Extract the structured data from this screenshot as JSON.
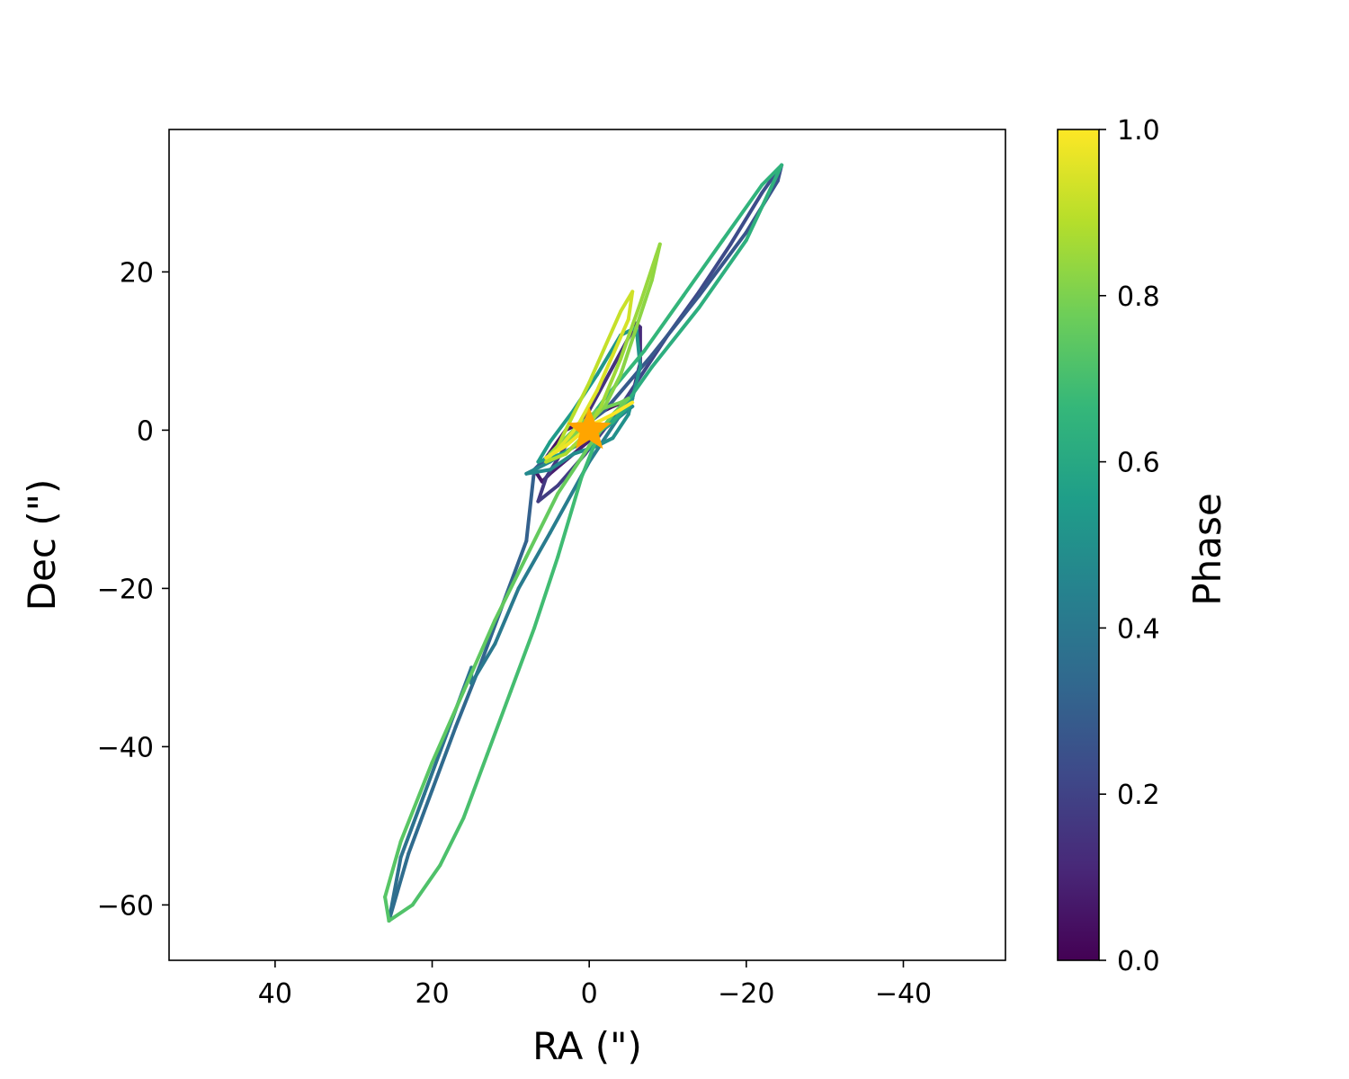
{
  "chart_data": {
    "type": "line",
    "title": "",
    "xlabel": "RA (\")",
    "ylabel": "Dec (\")",
    "colorbar_label": "Phase",
    "xlim": [
      53.5,
      -53
    ],
    "ylim": [
      -67,
      38
    ],
    "xaxis_inverted": true,
    "grid": false,
    "x_ticks": [
      40,
      20,
      0,
      -20,
      -40
    ],
    "x_tick_labels": [
      "40",
      "20",
      "0",
      "−20",
      "−40"
    ],
    "y_ticks": [
      20,
      0,
      -20,
      -40,
      -60
    ],
    "y_tick_labels": [
      "20",
      "0",
      "−20",
      "−40",
      "−60"
    ],
    "colorbar_ticks": [
      0.0,
      0.2,
      0.4,
      0.6,
      0.8,
      1.0
    ],
    "colorbar_tick_labels": [
      "0.0",
      "0.2",
      "0.4",
      "0.6",
      "0.8",
      "1.0"
    ],
    "colormap": "viridis",
    "colormap_stops": [
      "#440154",
      "#482878",
      "#3e4989",
      "#31688e",
      "#26828e",
      "#1f9e89",
      "#35b779",
      "#6ece58",
      "#b5de2b",
      "#fde725"
    ],
    "host_star": {
      "x": 0,
      "y": 0,
      "color": "#ffa500",
      "marker": "star"
    },
    "series": [
      {
        "phase_start": 0.02,
        "phase_end": 0.36,
        "points": [
          [
            -5.5,
            4.0
          ],
          [
            -3,
            3.0
          ],
          [
            0,
            1.5
          ],
          [
            3,
            0.0
          ],
          [
            5.5,
            -3.5
          ],
          [
            7,
            -5.0
          ],
          [
            6,
            -6.5
          ],
          [
            5,
            -5.5
          ],
          [
            2,
            -3.0
          ],
          [
            -1,
            -0.5
          ],
          [
            -3,
            1.0
          ],
          [
            -5.5,
            4.5
          ],
          [
            -6.5,
            8.5
          ],
          [
            -6.5,
            13.0
          ],
          [
            -6,
            13.5
          ],
          [
            -3,
            8.0
          ],
          [
            0,
            2.5
          ],
          [
            3,
            -2.0
          ],
          [
            5.5,
            -6.0
          ],
          [
            6.5,
            -9.0
          ],
          [
            4,
            -7.0
          ],
          [
            0.5,
            -3.0
          ],
          [
            -3,
            1.5
          ],
          [
            -6,
            6.0
          ],
          [
            -10,
            12.0
          ],
          [
            -14,
            17.5
          ],
          [
            -18,
            23.5
          ],
          [
            -22,
            30.0
          ],
          [
            -24.5,
            33.5
          ],
          [
            -24,
            31.5
          ],
          [
            -20,
            25.0
          ],
          [
            -14,
            17.0
          ],
          [
            -8,
            9.5
          ],
          [
            -2,
            2.5
          ],
          [
            4,
            -2.0
          ],
          [
            7,
            -5.0
          ],
          [
            8,
            -14.0
          ],
          [
            11,
            -22.0
          ],
          [
            14,
            -30.0
          ],
          [
            17,
            -37.5
          ],
          [
            20,
            -45.5
          ],
          [
            23,
            -53.5
          ],
          [
            25.5,
            -62.0
          ]
        ]
      },
      {
        "phase_start": 0.36,
        "phase_end": 0.62,
        "points": [
          [
            25.5,
            -62.0
          ],
          [
            24,
            -54.0
          ],
          [
            21,
            -46.0
          ],
          [
            18,
            -38.0
          ],
          [
            15,
            -30.0
          ],
          [
            15,
            -32.0
          ],
          [
            12,
            -27.0
          ],
          [
            9,
            -20.0
          ],
          [
            5,
            -13.0
          ],
          [
            0,
            -4.0
          ],
          [
            -4,
            2.0
          ],
          [
            -5.5,
            3.0
          ],
          [
            -3,
            1.0
          ],
          [
            1,
            -1.5
          ],
          [
            5,
            -4.0
          ],
          [
            8,
            -5.5
          ],
          [
            5,
            -5.0
          ],
          [
            2,
            -3.0
          ],
          [
            -1,
            -2.0
          ],
          [
            -3,
            -1.0
          ],
          [
            -5,
            2.0
          ],
          [
            -6.5,
            8.0
          ],
          [
            -6,
            13.0
          ],
          [
            -4,
            12.0
          ],
          [
            -1,
            7.0
          ],
          [
            2,
            2.5
          ],
          [
            5,
            -1.5
          ],
          [
            6.5,
            -4.0
          ],
          [
            3.5,
            -3.0
          ],
          [
            0,
            -1.0
          ],
          [
            -3,
            1.0
          ],
          [
            -5,
            3.0
          ],
          [
            -4,
            2.0
          ],
          [
            -1,
            0.0
          ],
          [
            2,
            -2.0
          ],
          [
            0,
            -1.0
          ],
          [
            -3,
            1.0
          ]
        ]
      },
      {
        "phase_start": 0.62,
        "phase_end": 0.85,
        "points": [
          [
            -3,
            1.0
          ],
          [
            -8,
            8.0
          ],
          [
            -14,
            15.5
          ],
          [
            -20,
            24.0
          ],
          [
            -24.5,
            33.5
          ],
          [
            -22,
            31.0
          ],
          [
            -17,
            24.0
          ],
          [
            -12,
            17.0
          ],
          [
            -7,
            10.0
          ],
          [
            -2,
            4.0
          ],
          [
            1,
            0.0
          ],
          [
            -1,
            -1.0
          ],
          [
            1,
            -6.0
          ],
          [
            4,
            -16.0
          ],
          [
            7,
            -25.0
          ],
          [
            10,
            -33.0
          ],
          [
            13,
            -41.0
          ],
          [
            16,
            -49.0
          ],
          [
            19,
            -55.0
          ],
          [
            22.5,
            -60.0
          ],
          [
            25.5,
            -62.0
          ],
          [
            26,
            -59.0
          ],
          [
            24,
            -52.0
          ],
          [
            20,
            -42.0
          ],
          [
            16,
            -33.0
          ],
          [
            12,
            -24.0
          ],
          [
            8,
            -16.0
          ],
          [
            4,
            -8.0
          ],
          [
            0,
            -2.0
          ],
          [
            -3,
            2.0
          ],
          [
            -5,
            4.0
          ],
          [
            -4,
            3.5
          ],
          [
            -1,
            2.5
          ],
          [
            2,
            0.0
          ],
          [
            5,
            -3.0
          ],
          [
            3,
            -1.5
          ],
          [
            0,
            1.0
          ],
          [
            -2,
            3.0
          ],
          [
            -4,
            7.0
          ],
          [
            -6,
            13.0
          ],
          [
            -8,
            19.0
          ],
          [
            -9,
            23.5
          ],
          [
            -8.5,
            22.0
          ],
          [
            -6.5,
            16.0
          ],
          [
            -4,
            9.0
          ]
        ]
      },
      {
        "phase_start": 0.85,
        "phase_end": 1.0,
        "points": [
          [
            -4,
            9.0
          ],
          [
            -1.5,
            3.0
          ],
          [
            1,
            -1.0
          ],
          [
            3,
            -3.0
          ],
          [
            5.5,
            -4.0
          ],
          [
            4,
            -2.0
          ],
          [
            2,
            2.0
          ],
          [
            0,
            6.0
          ],
          [
            -2,
            10.5
          ],
          [
            -4,
            15.0
          ],
          [
            -5.5,
            17.5
          ],
          [
            -5,
            14.0
          ],
          [
            -3,
            9.5
          ],
          [
            -1,
            5.0
          ],
          [
            1.5,
            0.5
          ],
          [
            4,
            -2.5
          ],
          [
            5.5,
            -3.5
          ],
          [
            3,
            -2.0
          ],
          [
            0,
            0.5
          ],
          [
            -3,
            2.0
          ],
          [
            -5.5,
            3.5
          ]
        ]
      }
    ]
  }
}
